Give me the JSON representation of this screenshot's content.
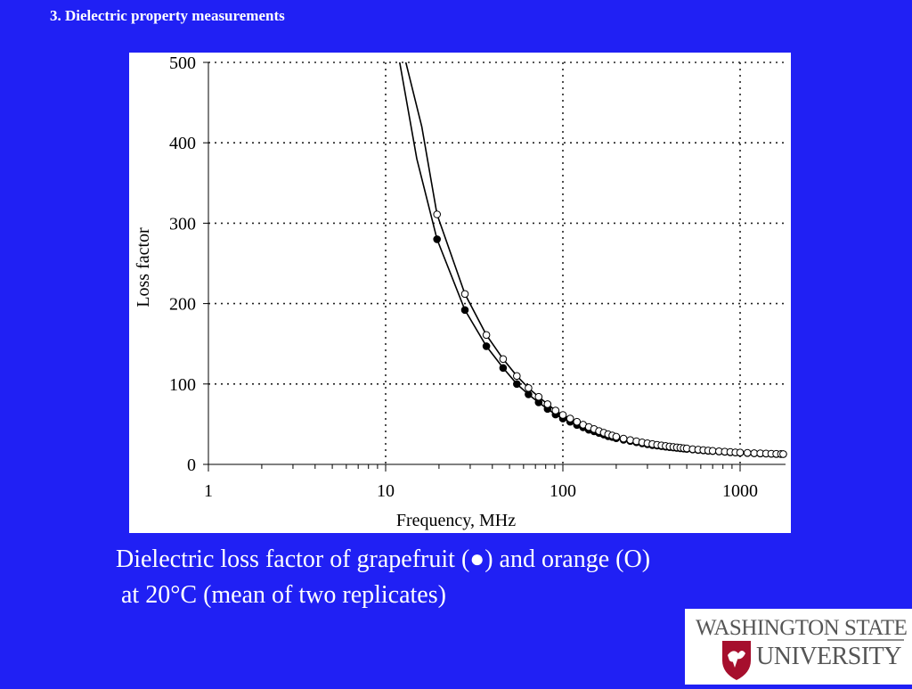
{
  "slide": {
    "title": "3. Dielectric property measurements",
    "caption_prefix": "Dielectric loss factor of grapefruit (",
    "caption_marker_grapefruit": "●",
    "caption_middle": ") and orange (",
    "caption_marker_orange": "O",
    "caption_suffix": ")",
    "caption_line2": "at 20°C (mean of two replicates)"
  },
  "logo": {
    "line1": "WASHINGTON STATE",
    "line2": "UNIVERSITY",
    "color": "#a60f2d"
  },
  "chart_data": {
    "type": "line",
    "title": "",
    "xlabel": "Frequency, MHz",
    "ylabel": "Loss factor",
    "xscale": "log",
    "xlim": [
      1,
      1800
    ],
    "ylim": [
      0,
      500
    ],
    "x_ticks": [
      1,
      10,
      100,
      1000
    ],
    "y_ticks": [
      0,
      100,
      200,
      300,
      400,
      500
    ],
    "grid": "dotted at major ticks",
    "legend": "none",
    "series": [
      {
        "marker": "filled-circle",
        "x": [
          10,
          12,
          15,
          19.5,
          28,
          37,
          46,
          55,
          64,
          73,
          82,
          91,
          100,
          110,
          120,
          130,
          140,
          150,
          160,
          170,
          180,
          190,
          200,
          220,
          240,
          260,
          280,
          300,
          320,
          340,
          360,
          380,
          400,
          420,
          440,
          460,
          480,
          500,
          540,
          580,
          620,
          660,
          700,
          760,
          820,
          880,
          940,
          1000,
          1100,
          1200,
          1300,
          1400,
          1500,
          1600,
          1700,
          1750
        ],
        "y": [
          540,
          500,
          380,
          280,
          192,
          147,
          120,
          100,
          87,
          77,
          69,
          62,
          57,
          53,
          49,
          46,
          43,
          41,
          39,
          37,
          35,
          34,
          32.5,
          30.5,
          29,
          27.5,
          26,
          25,
          24,
          23.3,
          22.6,
          22,
          21.4,
          20.9,
          20.4,
          20,
          19.6,
          19.2,
          18.5,
          17.9,
          17.4,
          16.9,
          16.5,
          16,
          15.5,
          15.1,
          14.8,
          14.5,
          14.1,
          13.8,
          13.5,
          13.3,
          13.1,
          12.9,
          12.8,
          12.7
        ],
        "marker_count": 55
      },
      {
        "marker": "open-circle",
        "x": [
          11,
          13,
          16,
          19.5,
          28,
          37,
          46,
          55,
          64,
          73,
          82,
          91,
          100,
          110,
          120,
          130,
          140,
          150,
          160,
          170,
          180,
          190,
          200,
          220,
          240,
          260,
          280,
          300,
          320,
          340,
          360,
          380,
          400,
          420,
          440,
          460,
          480,
          500,
          540,
          580,
          620,
          660,
          700,
          760,
          820,
          880,
          940,
          1000,
          1100,
          1200,
          1300,
          1400,
          1500,
          1600,
          1700,
          1750
        ],
        "y": [
          540,
          500,
          420,
          311,
          212,
          161,
          131,
          110,
          95,
          84,
          75,
          67,
          61.5,
          57,
          53,
          49.5,
          46.5,
          44,
          41.5,
          39.5,
          37.5,
          36,
          34.5,
          32,
          30.3,
          28.8,
          27.4,
          26.3,
          25.3,
          24.4,
          23.6,
          22.9,
          22.3,
          21.7,
          21.2,
          20.7,
          20.2,
          19.8,
          19,
          18.4,
          17.8,
          17.3,
          16.8,
          16.3,
          15.8,
          15.4,
          15,
          14.7,
          14.3,
          14,
          13.7,
          13.5,
          13.3,
          13.1,
          13,
          12.9
        ],
        "marker_count": 55
      }
    ]
  }
}
